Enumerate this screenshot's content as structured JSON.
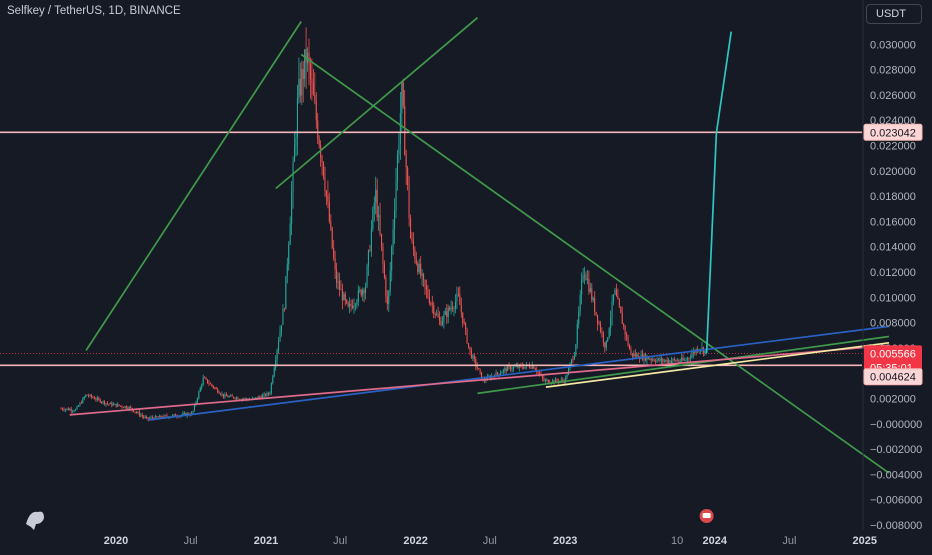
{
  "header": {
    "title": "Selfkey / TetherUS, 1D, BINANCE",
    "currency_button": "USDT"
  },
  "colors": {
    "background": "#161a25",
    "up_candle": "#26a69a",
    "down_candle": "#ef5350",
    "horizontal_line": "#f7b6b6",
    "green_trendline": "#3f9a4a",
    "blue_trendline": "#2962c4",
    "cyan_line": "#2cc7c0",
    "yellow_line": "#f5e9a4",
    "pink_line": "#e06b8b",
    "current_price_tag": "#f23645"
  },
  "price_tags": {
    "level_top": "0.023042",
    "current_price": "0.005566",
    "countdown": "05:35:01",
    "level_bottom": "0.004624"
  },
  "chart_data": {
    "type": "candlestick",
    "title": "Selfkey / TetherUS, 1D, BINANCE",
    "y_axis": {
      "ticks": [
        "0.030000",
        "0.028000",
        "0.026000",
        "0.024000",
        "0.022000",
        "0.020000",
        "0.018000",
        "0.016000",
        "0.014000",
        "0.012000",
        "0.010000",
        "0.008000",
        "0.006000",
        "0.004000",
        "0.002000",
        "−0.000000",
        "−0.002000",
        "−0.004000",
        "−0.006000",
        "−0.008000"
      ],
      "range": [
        -0.0081,
        0.0304
      ]
    },
    "x_axis": {
      "labels": [
        "2020",
        "Jul",
        "2021",
        "Jul",
        "2022",
        "Jul",
        "2023",
        "10",
        "2024",
        "Jul",
        "2025"
      ],
      "bold_labels": [
        "2020",
        "2021",
        "2022",
        "2023",
        "2024",
        "2025"
      ]
    },
    "horizontal_lines": [
      0.023042,
      0.004624
    ],
    "price_path": [
      [
        "2019-08-20",
        0.0012
      ],
      [
        "2019-09-25",
        0.0011
      ],
      [
        "2019-10-20",
        0.0023
      ],
      [
        "2019-12-10",
        0.0016
      ],
      [
        "2020-02-01",
        0.0013
      ],
      [
        "2020-03-15",
        0.0004
      ],
      [
        "2020-05-10",
        0.0006
      ],
      [
        "2020-07-05",
        0.0008
      ],
      [
        "2020-08-01",
        0.0036
      ],
      [
        "2020-09-20",
        0.0022
      ],
      [
        "2020-11-25",
        0.0019
      ],
      [
        "2021-01-10",
        0.0024
      ],
      [
        "2021-02-15",
        0.0095
      ],
      [
        "2021-03-20",
        0.0258
      ],
      [
        "2021-04-10",
        0.0292
      ],
      [
        "2021-05-20",
        0.0205
      ],
      [
        "2021-06-20",
        0.0115
      ],
      [
        "2021-07-20",
        0.009
      ],
      [
        "2021-09-01",
        0.011
      ],
      [
        "2021-09-25",
        0.0183
      ],
      [
        "2021-10-25",
        0.009
      ],
      [
        "2021-11-28",
        0.0262
      ],
      [
        "2021-12-20",
        0.0145
      ],
      [
        "2022-01-20",
        0.011
      ],
      [
        "2022-03-01",
        0.008
      ],
      [
        "2022-04-15",
        0.01
      ],
      [
        "2022-05-12",
        0.0058
      ],
      [
        "2022-06-15",
        0.0034
      ],
      [
        "2022-08-15",
        0.0044
      ],
      [
        "2022-10-15",
        0.0046
      ],
      [
        "2022-11-10",
        0.0034
      ],
      [
        "2022-12-31",
        0.0034
      ],
      [
        "2023-01-25",
        0.0058
      ],
      [
        "2023-02-15",
        0.0125
      ],
      [
        "2023-03-15",
        0.009
      ],
      [
        "2023-04-10",
        0.006
      ],
      [
        "2023-05-01",
        0.0105
      ],
      [
        "2023-06-10",
        0.0055
      ],
      [
        "2023-08-20",
        0.005
      ],
      [
        "2023-10-20",
        0.005
      ],
      [
        "2023-11-25",
        0.0061
      ],
      [
        "2023-12-12",
        0.0056
      ]
    ],
    "trendlines": [
      {
        "color": "green",
        "points": [
          [
            "2019-10-20",
            0.0058
          ],
          [
            "2021-03-28",
            0.0318
          ]
        ]
      },
      {
        "color": "green",
        "points": [
          [
            "2021-01-25",
            0.0186
          ],
          [
            "2022-06-01",
            0.0321
          ]
        ]
      },
      {
        "color": "green",
        "points": [
          [
            "2021-03-28",
            0.0292
          ],
          [
            "2025-03-01",
            -0.0039
          ]
        ]
      },
      {
        "color": "green",
        "points": [
          [
            "2022-06-01",
            0.0024
          ],
          [
            "2025-03-01",
            0.0069
          ]
        ]
      },
      {
        "color": "blue",
        "points": [
          [
            "2020-03-20",
            0.0003
          ],
          [
            "2025-03-01",
            0.0077
          ]
        ]
      },
      {
        "color": "pink",
        "points": [
          [
            "2019-09-10",
            0.0007
          ],
          [
            "2025-03-01",
            0.0062
          ]
        ]
      },
      {
        "color": "yellow",
        "points": [
          [
            "2022-11-15",
            0.0029
          ],
          [
            "2025-03-01",
            0.0064
          ]
        ]
      },
      {
        "color": "cyan",
        "points": [
          [
            "2023-12-12",
            0.0056
          ],
          [
            "2024-01-05",
            0.023
          ],
          [
            "2024-02-10",
            0.031
          ]
        ]
      }
    ]
  }
}
